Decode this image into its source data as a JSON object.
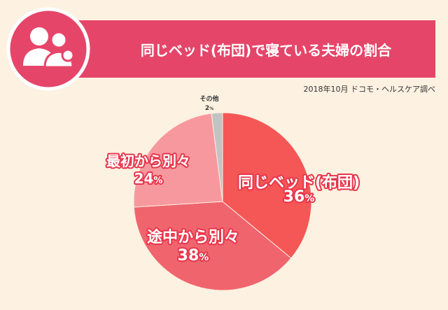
{
  "header": {
    "title": "同じベッド(布団)で寝ている夫婦の割合",
    "icon": "couple-icon",
    "colors": {
      "bar": "#e6456a",
      "circle": "#e6456a",
      "circle_border": "#ffffff"
    }
  },
  "source": "2018年10月 ドコモ・ヘルスケア調べ",
  "colors": {
    "background": "#fdf1e1"
  },
  "chart_data": {
    "type": "pie",
    "title": "同じベッド(布団)で寝ている夫婦の割合",
    "slices": [
      {
        "label": "同じベッド(布団)",
        "value": 36,
        "display": "36",
        "unit": "%",
        "color": "#f45756",
        "label_color": "#ffffff",
        "outline": "#e8354a",
        "label_size": 22
      },
      {
        "label": "途中から別々",
        "value": 38,
        "display": "38",
        "unit": "%",
        "color": "#f0646e",
        "label_color": "#ffffff",
        "outline": "#e8354a",
        "label_size": 22
      },
      {
        "label": "最初から別々",
        "value": 24,
        "display": "24",
        "unit": "%",
        "color": "#f7989e",
        "label_color": "#ffffff",
        "outline": "#e8354a",
        "label_size": 20
      },
      {
        "label": "その他",
        "value": 2,
        "display": "2",
        "unit": "%",
        "color": "#c3c3c3",
        "label_color": "#333333",
        "outline": "none",
        "label_size": 9
      }
    ],
    "start_angle_deg": 0,
    "direction": "clockwise"
  }
}
